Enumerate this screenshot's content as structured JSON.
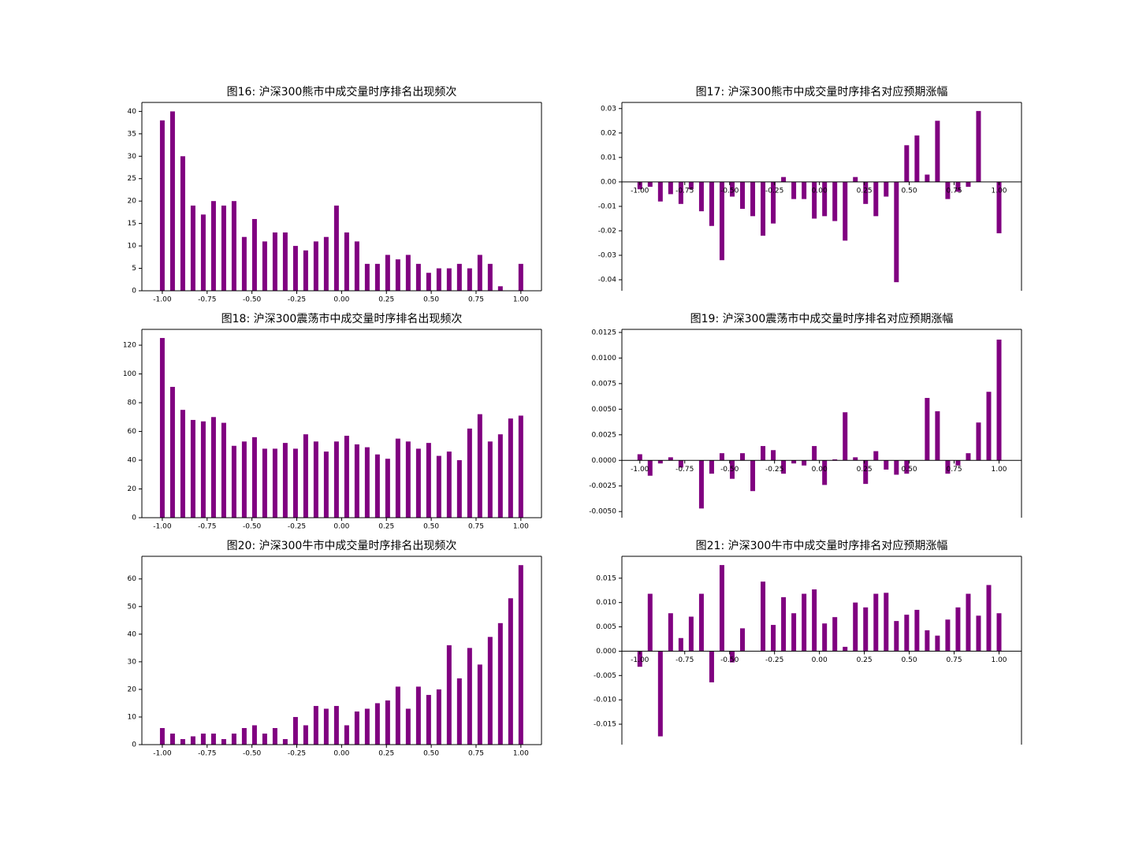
{
  "chart_data": [
    {
      "type": "bar",
      "title": "图16: 沪深300熊市中成交量时序排名出现频次",
      "color": "#800080",
      "x": [
        -1,
        -0.9429,
        -0.8857,
        -0.8286,
        -0.7714,
        -0.7143,
        -0.6571,
        -0.6,
        -0.5429,
        -0.4857,
        -0.4286,
        -0.3714,
        -0.3143,
        -0.2571,
        -0.2,
        -0.1429,
        -0.0857,
        -0.0286,
        0.0286,
        0.0857,
        0.1429,
        0.2,
        0.2571,
        0.3143,
        0.3714,
        0.4286,
        0.4857,
        0.5429,
        0.6,
        0.6571,
        0.7143,
        0.7714,
        0.8286,
        0.8857,
        0.9429,
        1
      ],
      "values": [
        38,
        40,
        30,
        19,
        17,
        20,
        19,
        20,
        12,
        16,
        11,
        13,
        13,
        10,
        9,
        11,
        12,
        19,
        13,
        11,
        6,
        6,
        8,
        7,
        8,
        6,
        4,
        5,
        5,
        6,
        5,
        8,
        6,
        1,
        0,
        6
      ],
      "xlim": [
        -1.114,
        1.115
      ],
      "ylim": [
        0,
        42
      ],
      "xticks": [
        {
          "value": -1,
          "label": "-1.00"
        },
        -0.75,
        {
          "value": -0.5,
          "label": "-0.50"
        },
        -0.25,
        {
          "value": 0,
          "label": "0.00"
        },
        0.25,
        {
          "value": 0.5,
          "label": "0.50"
        },
        0.75,
        {
          "value": 1,
          "label": "1.00"
        }
      ],
      "yticks": [
        0,
        5,
        10,
        15,
        20,
        25,
        30,
        35,
        40
      ]
    },
    {
      "type": "bar",
      "title": "图17: 沪深300熊市中成交量时序排名对应预期涨幅",
      "color": "#800080",
      "x": [
        -1,
        -0.9429,
        -0.8857,
        -0.8286,
        -0.7714,
        -0.7143,
        -0.6571,
        -0.6,
        -0.5429,
        -0.4857,
        -0.4286,
        -0.3714,
        -0.3143,
        -0.2571,
        -0.2,
        -0.1429,
        -0.0857,
        -0.0286,
        0.0286,
        0.0857,
        0.1429,
        0.2,
        0.2571,
        0.3143,
        0.3714,
        0.4286,
        0.4857,
        0.5429,
        0.6,
        0.6571,
        0.7143,
        0.7714,
        0.8286,
        0.8857,
        0.9429,
        1
      ],
      "values": [
        -0.003,
        -0.002,
        -0.008,
        -0.005,
        -0.009,
        -0.003,
        -0.012,
        -0.018,
        -0.032,
        -0.006,
        -0.011,
        -0.014,
        -0.022,
        -0.017,
        0.002,
        -0.007,
        -0.007,
        -0.015,
        -0.014,
        -0.016,
        -0.024,
        0.002,
        -0.009,
        -0.014,
        -0.006,
        -0.041,
        0.015,
        0.019,
        0.003,
        0.025,
        -0.007,
        -0.004,
        -0.002,
        0.029,
        0,
        -0.021
      ],
      "xlim": [
        -1.1,
        1.125
      ],
      "ylim": [
        -0.0445,
        0.0325
      ],
      "xticks": [
        {
          "value": -1,
          "label": "-1.00"
        },
        -0.75,
        {
          "value": -0.5,
          "label": "-0.50"
        },
        -0.25,
        {
          "value": 0,
          "label": "0.00"
        },
        0.25,
        {
          "value": 0.5,
          "label": "0.50"
        },
        0.75,
        {
          "value": 1,
          "label": "1.00"
        }
      ],
      "yticks": [
        -0.04,
        -0.03,
        -0.02,
        -0.01,
        {
          "value": 0,
          "label": "0.00"
        },
        0.01,
        0.02,
        0.03
      ]
    },
    {
      "type": "bar",
      "title": "图18: 沪深300震荡市中成交量时序排名出现频次",
      "color": "#800080",
      "x": [
        -1,
        -0.9429,
        -0.8857,
        -0.8286,
        -0.7714,
        -0.7143,
        -0.6571,
        -0.6,
        -0.5429,
        -0.4857,
        -0.4286,
        -0.3714,
        -0.3143,
        -0.2571,
        -0.2,
        -0.1429,
        -0.0857,
        -0.0286,
        0.0286,
        0.0857,
        0.1429,
        0.2,
        0.2571,
        0.3143,
        0.3714,
        0.4286,
        0.4857,
        0.5429,
        0.6,
        0.6571,
        0.7143,
        0.7714,
        0.8286,
        0.8857,
        0.9429,
        1
      ],
      "values": [
        125,
        91,
        75,
        68,
        67,
        70,
        66,
        50,
        53,
        56,
        48,
        48,
        52,
        48,
        58,
        53,
        46,
        53,
        57,
        51,
        49,
        44,
        41,
        55,
        53,
        48,
        52,
        43,
        46,
        40,
        62,
        72,
        53,
        58,
        69,
        71
      ],
      "xlim": [
        -1.114,
        1.115
      ],
      "ylim": [
        0,
        131
      ],
      "xticks": [
        {
          "value": -1,
          "label": "-1.00"
        },
        -0.75,
        {
          "value": -0.5,
          "label": "-0.50"
        },
        -0.25,
        {
          "value": 0,
          "label": "0.00"
        },
        0.25,
        {
          "value": 0.5,
          "label": "0.50"
        },
        0.75,
        {
          "value": 1,
          "label": "1.00"
        }
      ],
      "yticks": [
        0,
        20,
        40,
        60,
        80,
        100,
        120
      ]
    },
    {
      "type": "bar",
      "title": "图19: 沪深300震荡市中成交量时序排名对应预期涨幅",
      "color": "#800080",
      "x": [
        -1,
        -0.9429,
        -0.8857,
        -0.8286,
        -0.7714,
        -0.7143,
        -0.6571,
        -0.6,
        -0.5429,
        -0.4857,
        -0.4286,
        -0.3714,
        -0.3143,
        -0.2571,
        -0.2,
        -0.1429,
        -0.0857,
        -0.0286,
        0.0286,
        0.0857,
        0.1429,
        0.2,
        0.2571,
        0.3143,
        0.3714,
        0.4286,
        0.4857,
        0.5429,
        0.6,
        0.6571,
        0.7143,
        0.7714,
        0.8286,
        0.8857,
        0.9429,
        1
      ],
      "values": [
        0.0006,
        -0.0015,
        -0.0003,
        0.0003,
        -0.0007,
        0,
        -0.0047,
        -0.0013,
        0.0007,
        -0.0018,
        0.0007,
        -0.003,
        0.0014,
        0.001,
        -0.0013,
        -0.0003,
        -0.0005,
        0.0014,
        -0.0024,
        0.0001,
        0.0047,
        0.0003,
        -0.0023,
        0.0009,
        -0.0009,
        -0.0014,
        -0.0013,
        0,
        0.0061,
        0.0048,
        -0.0013,
        -0.0005,
        0.0007,
        0.0037,
        0.0067,
        0.0118
      ],
      "xlim": [
        -1.1,
        1.125
      ],
      "ylim": [
        -0.0056,
        0.0128
      ],
      "xticks": [
        {
          "value": -1,
          "label": "-1.00"
        },
        -0.75,
        {
          "value": -0.5,
          "label": "-0.50"
        },
        -0.25,
        {
          "value": 0,
          "label": "0.00"
        },
        0.25,
        {
          "value": 0.5,
          "label": "0.50"
        },
        0.75,
        {
          "value": 1,
          "label": "1.00"
        }
      ],
      "yticks": [
        {
          "value": -0.005,
          "label": "-0.0050"
        },
        -0.0025,
        {
          "value": 0,
          "label": "0.0000"
        },
        0.0025,
        {
          "value": 0.005,
          "label": "0.0050"
        },
        0.0075,
        {
          "value": 0.01,
          "label": "0.0100"
        },
        0.0125
      ]
    },
    {
      "type": "bar",
      "title": "图20: 沪深300牛市中成交量时序排名出现频次",
      "color": "#800080",
      "x": [
        -1,
        -0.9429,
        -0.8857,
        -0.8286,
        -0.7714,
        -0.7143,
        -0.6571,
        -0.6,
        -0.5429,
        -0.4857,
        -0.4286,
        -0.3714,
        -0.3143,
        -0.2571,
        -0.2,
        -0.1429,
        -0.0857,
        -0.0286,
        0.0286,
        0.0857,
        0.1429,
        0.2,
        0.2571,
        0.3143,
        0.3714,
        0.4286,
        0.4857,
        0.5429,
        0.6,
        0.6571,
        0.7143,
        0.7714,
        0.8286,
        0.8857,
        0.9429,
        1
      ],
      "values": [
        6,
        4,
        2,
        3,
        4,
        4,
        2,
        4,
        6,
        7,
        4,
        6,
        2,
        10,
        7,
        14,
        13,
        14,
        7,
        12,
        13,
        15,
        16,
        21,
        13,
        21,
        18,
        20,
        36,
        24,
        35,
        29,
        39,
        44,
        53,
        65
      ],
      "xlim": [
        -1.114,
        1.115
      ],
      "ylim": [
        0,
        68.2
      ],
      "xticks": [
        {
          "value": -1,
          "label": "-1.00"
        },
        -0.75,
        {
          "value": -0.5,
          "label": "-0.50"
        },
        -0.25,
        {
          "value": 0,
          "label": "0.00"
        },
        0.25,
        {
          "value": 0.5,
          "label": "0.50"
        },
        0.75,
        {
          "value": 1,
          "label": "1.00"
        }
      ],
      "yticks": [
        0,
        10,
        20,
        30,
        40,
        50,
        60
      ]
    },
    {
      "type": "bar",
      "title": "图21: 沪深300牛市中成交量时序排名对应预期涨幅",
      "color": "#800080",
      "x": [
        -1,
        -0.9429,
        -0.8857,
        -0.8286,
        -0.7714,
        -0.7143,
        -0.6571,
        -0.6,
        -0.5429,
        -0.4857,
        -0.4286,
        -0.3714,
        -0.3143,
        -0.2571,
        -0.2,
        -0.1429,
        -0.0857,
        -0.0286,
        0.0286,
        0.0857,
        0.1429,
        0.2,
        0.2571,
        0.3143,
        0.3714,
        0.4286,
        0.4857,
        0.5429,
        0.6,
        0.6571,
        0.7143,
        0.7714,
        0.8286,
        0.8857,
        0.9429,
        1
      ],
      "values": [
        -0.0032,
        0.0118,
        -0.0175,
        0.0078,
        0.0027,
        0.0071,
        0.0118,
        -0.0064,
        0.0177,
        -0.0023,
        0.0047,
        0,
        0.0143,
        0.0054,
        0.0111,
        0.0078,
        0.0118,
        0.0127,
        0.0057,
        0.007,
        0.0009,
        0.01,
        0.009,
        0.0118,
        0.012,
        0.0062,
        0.0075,
        0.0085,
        0.0043,
        0.0032,
        0.0065,
        0.009,
        0.0118,
        0.0073,
        0.0136,
        0.0078
      ],
      "xlim": [
        -1.1,
        1.125
      ],
      "ylim": [
        -0.0192,
        0.0195
      ],
      "xticks": [
        {
          "value": -1,
          "label": "-1.00"
        },
        -0.75,
        {
          "value": -0.5,
          "label": "-0.50"
        },
        -0.25,
        {
          "value": 0,
          "label": "0.00"
        },
        0.25,
        {
          "value": 0.5,
          "label": "0.50"
        },
        0.75,
        {
          "value": 1,
          "label": "1.00"
        }
      ],
      "yticks": [
        -0.015,
        {
          "value": -0.01,
          "label": "-0.010"
        },
        -0.005,
        {
          "value": 0,
          "label": "0.000"
        },
        0.005,
        {
          "value": 0.01,
          "label": "0.010"
        },
        0.015
      ]
    }
  ]
}
